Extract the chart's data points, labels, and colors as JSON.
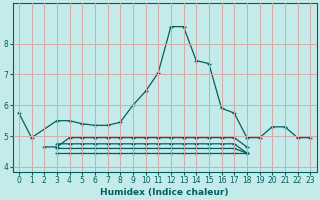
{
  "xlabel": "Humidex (Indice chaleur)",
  "xlim": [
    -0.5,
    23.5
  ],
  "ylim": [
    3.85,
    9.3
  ],
  "yticks": [
    4,
    5,
    6,
    7,
    8
  ],
  "xticks": [
    0,
    1,
    2,
    3,
    4,
    5,
    6,
    7,
    8,
    9,
    10,
    11,
    12,
    13,
    14,
    15,
    16,
    17,
    18,
    19,
    20,
    21,
    22,
    23
  ],
  "bg_color": "#c5eaea",
  "grid_color": "#d4aaaa",
  "line_color": "#006060",
  "series": [
    {
      "x": [
        0,
        1,
        3,
        4,
        5,
        6,
        7,
        8,
        9,
        10,
        11,
        12,
        13,
        14,
        15,
        16,
        17,
        18,
        19,
        20,
        21,
        22,
        23
      ],
      "y": [
        5.75,
        4.95,
        5.5,
        5.5,
        5.4,
        5.35,
        5.35,
        5.45,
        6.0,
        6.45,
        7.05,
        8.55,
        8.55,
        7.45,
        7.35,
        5.9,
        5.75,
        4.95,
        4.95,
        5.3,
        5.3,
        4.95,
        4.95
      ]
    },
    {
      "x": [
        2,
        3,
        4,
        5,
        6,
        7,
        8,
        9,
        10,
        11,
        12,
        13,
        14,
        15,
        16,
        17,
        18
      ],
      "y": [
        4.65,
        4.65,
        4.95,
        4.95,
        4.95,
        4.95,
        4.95,
        4.95,
        4.95,
        4.95,
        4.95,
        4.95,
        4.95,
        4.95,
        4.95,
        4.95,
        4.65
      ]
    },
    {
      "x": [
        3,
        4,
        5,
        6,
        7,
        8,
        9,
        10,
        11,
        12,
        13,
        14,
        15,
        16,
        17,
        18
      ],
      "y": [
        4.75,
        4.75,
        4.75,
        4.75,
        4.75,
        4.75,
        4.75,
        4.75,
        4.75,
        4.75,
        4.75,
        4.75,
        4.75,
        4.75,
        4.75,
        4.45
      ]
    },
    {
      "x": [
        3,
        4,
        5,
        6,
        7,
        8,
        9,
        10,
        11,
        12,
        13,
        14,
        15,
        16,
        17,
        18
      ],
      "y": [
        4.6,
        4.6,
        4.6,
        4.6,
        4.6,
        4.6,
        4.6,
        4.6,
        4.6,
        4.6,
        4.6,
        4.6,
        4.6,
        4.6,
        4.6,
        4.45
      ]
    },
    {
      "x": [
        3,
        4,
        5,
        6,
        7,
        8,
        9,
        10,
        11,
        12,
        13,
        14,
        15,
        16,
        17,
        18
      ],
      "y": [
        4.45,
        4.45,
        4.45,
        4.45,
        4.45,
        4.45,
        4.45,
        4.45,
        4.45,
        4.45,
        4.45,
        4.45,
        4.45,
        4.45,
        4.45,
        4.45
      ]
    }
  ]
}
